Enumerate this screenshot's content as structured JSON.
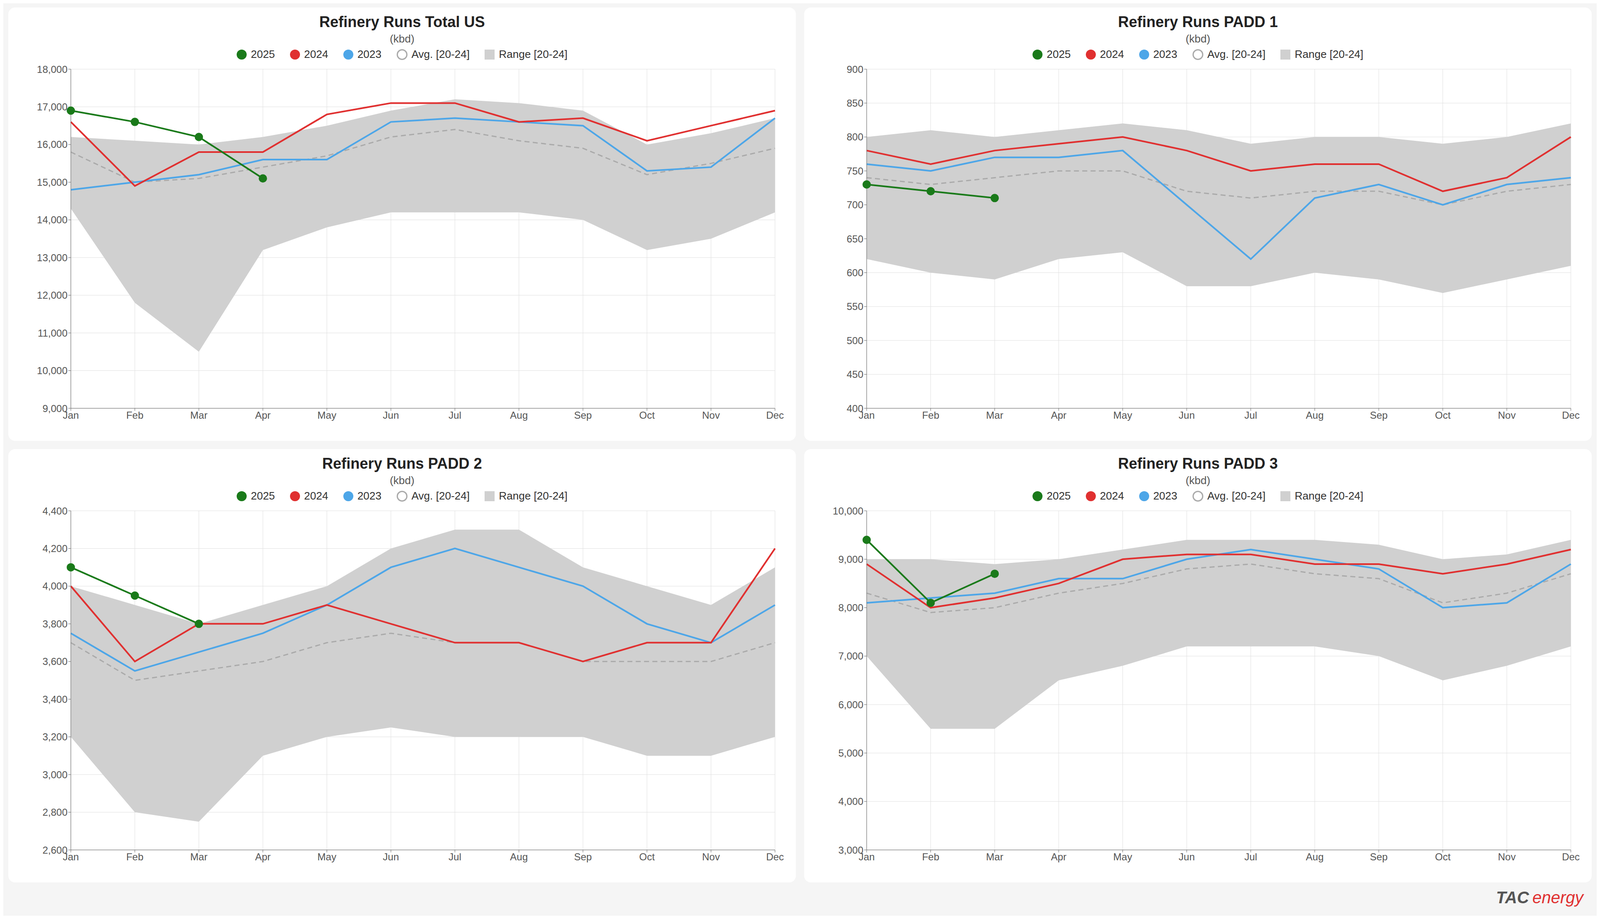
{
  "chart_data": [
    {
      "type": "line",
      "title": "Refinery Runs Total US",
      "subtitle": "(kbd)",
      "categories": [
        "Jan",
        "Feb",
        "Mar",
        "Apr",
        "May",
        "Jun",
        "Jul",
        "Aug",
        "Sep",
        "Oct",
        "Nov",
        "Dec"
      ],
      "series": [
        {
          "name": "2025",
          "color": "#1a7a1a",
          "marker": "circle",
          "values": [
            16900,
            16600,
            16200,
            15100,
            null,
            null,
            null,
            null,
            null,
            null,
            null,
            null
          ]
        },
        {
          "name": "2024",
          "color": "#e03030",
          "values": [
            16600,
            14900,
            15800,
            15800,
            16800,
            17100,
            17100,
            16600,
            16700,
            16100,
            16500,
            16900
          ]
        },
        {
          "name": "2023",
          "color": "#4da6e8",
          "values": [
            14800,
            15000,
            15200,
            15600,
            15600,
            16600,
            16700,
            16600,
            16500,
            15300,
            15400,
            16700
          ]
        },
        {
          "name": "Avg. [20-24]",
          "color": "#aaaaaa",
          "line_style": "dashed",
          "values": [
            15800,
            15000,
            15100,
            15400,
            15700,
            16200,
            16400,
            16100,
            15900,
            15200,
            15500,
            15900
          ]
        },
        {
          "name": "Range [20-24]",
          "type": "range",
          "color": "#d0d0d0",
          "low": [
            14300,
            11800,
            10500,
            13200,
            13800,
            14200,
            14200,
            14200,
            14000,
            13200,
            13500,
            14200
          ],
          "high": [
            16200,
            16100,
            16000,
            16200,
            16500,
            16900,
            17200,
            17100,
            16900,
            16000,
            16300,
            16700
          ]
        }
      ],
      "ylim": [
        9000,
        18000
      ],
      "yticks": [
        {
          "value": 9000,
          "label": "9,000"
        },
        {
          "value": 10000,
          "label": "10,000"
        },
        {
          "value": 11000,
          "label": "11,000"
        },
        {
          "value": 12000,
          "label": "12,000"
        },
        {
          "value": 13000,
          "label": "13,000"
        },
        {
          "value": 14000,
          "label": "14,000"
        },
        {
          "value": 15000,
          "label": "15,000"
        },
        {
          "value": 16000,
          "label": "16,000"
        },
        {
          "value": 17000,
          "label": "17,000"
        },
        {
          "value": 18000,
          "label": "18,000"
        }
      ],
      "grid": true,
      "legend": "top"
    },
    {
      "type": "line",
      "title": "Refinery Runs PADD 1",
      "subtitle": "(kbd)",
      "categories": [
        "Jan",
        "Feb",
        "Mar",
        "Apr",
        "May",
        "Jun",
        "Jul",
        "Aug",
        "Sep",
        "Oct",
        "Nov",
        "Dec"
      ],
      "series": [
        {
          "name": "2025",
          "color": "#1a7a1a",
          "marker": "circle",
          "values": [
            730,
            720,
            710,
            null,
            null,
            null,
            null,
            null,
            null,
            null,
            null,
            null
          ]
        },
        {
          "name": "2024",
          "color": "#e03030",
          "values": [
            780,
            760,
            780,
            790,
            800,
            780,
            750,
            760,
            760,
            720,
            740,
            800
          ]
        },
        {
          "name": "2023",
          "color": "#4da6e8",
          "values": [
            760,
            750,
            770,
            770,
            780,
            700,
            620,
            710,
            730,
            700,
            730,
            740
          ]
        },
        {
          "name": "Avg. [20-24]",
          "color": "#aaaaaa",
          "line_style": "dashed",
          "values": [
            740,
            730,
            740,
            750,
            750,
            720,
            710,
            720,
            720,
            700,
            720,
            730
          ]
        },
        {
          "name": "Range [20-24]",
          "type": "range",
          "color": "#d0d0d0",
          "low": [
            620,
            600,
            590,
            620,
            630,
            580,
            580,
            600,
            590,
            570,
            590,
            610
          ],
          "high": [
            800,
            810,
            800,
            810,
            820,
            810,
            790,
            800,
            800,
            790,
            800,
            820
          ]
        }
      ],
      "ylim": [
        400,
        900
      ],
      "yticks": [
        400,
        450,
        500,
        550,
        600,
        650,
        700,
        750,
        800,
        850,
        900
      ],
      "grid": true,
      "legend": "top"
    },
    {
      "type": "line",
      "title": "Refinery Runs PADD 2",
      "subtitle": "(kbd)",
      "categories": [
        "Jan",
        "Feb",
        "Mar",
        "Apr",
        "May",
        "Jun",
        "Jul",
        "Aug",
        "Sep",
        "Oct",
        "Nov",
        "Dec"
      ],
      "series": [
        {
          "name": "2025",
          "color": "#1a7a1a",
          "marker": "circle",
          "values": [
            4100,
            3950,
            3800,
            null,
            null,
            null,
            null,
            null,
            null,
            null,
            null,
            null
          ]
        },
        {
          "name": "2024",
          "color": "#e03030",
          "values": [
            4000,
            3600,
            3800,
            3800,
            3900,
            3800,
            3700,
            3700,
            3600,
            3700,
            3700,
            4200
          ]
        },
        {
          "name": "2023",
          "color": "#4da6e8",
          "values": [
            3750,
            3550,
            3650,
            3750,
            3900,
            4100,
            4200,
            4100,
            4000,
            3800,
            3700,
            3900
          ]
        },
        {
          "name": "Avg. [20-24]",
          "color": "#aaaaaa",
          "line_style": "dashed",
          "values": [
            3700,
            3500,
            3550,
            3600,
            3700,
            3750,
            3700,
            3700,
            3600,
            3600,
            3600,
            3700
          ]
        },
        {
          "name": "Range [20-24]",
          "type": "range",
          "color": "#d0d0d0",
          "low": [
            3200,
            2800,
            2750,
            3100,
            3200,
            3250,
            3200,
            3200,
            3200,
            3100,
            3100,
            3200
          ],
          "high": [
            4000,
            3900,
            3800,
            3900,
            4000,
            4200,
            4300,
            4300,
            4100,
            4000,
            3900,
            4100
          ]
        }
      ],
      "ylim": [
        2600,
        4400
      ],
      "yticks": [
        {
          "value": 2600,
          "label": "2,600"
        },
        {
          "value": 2800,
          "label": "2,800"
        },
        {
          "value": 3000,
          "label": "3,000"
        },
        {
          "value": 3200,
          "label": "3,200"
        },
        {
          "value": 3400,
          "label": "3,400"
        },
        {
          "value": 3600,
          "label": "3,600"
        },
        {
          "value": 3800,
          "label": "3,800"
        },
        {
          "value": 4000,
          "label": "4,000"
        },
        {
          "value": 4200,
          "label": "4,200"
        },
        {
          "value": 4400,
          "label": "4,400"
        }
      ],
      "grid": true,
      "legend": "top"
    },
    {
      "type": "line",
      "title": "Refinery Runs PADD 3",
      "subtitle": "(kbd)",
      "categories": [
        "Jan",
        "Feb",
        "Mar",
        "Apr",
        "May",
        "Jun",
        "Jul",
        "Aug",
        "Sep",
        "Oct",
        "Nov",
        "Dec"
      ],
      "series": [
        {
          "name": "2025",
          "color": "#1a7a1a",
          "marker": "circle",
          "values": [
            9400,
            8100,
            8700,
            null,
            null,
            null,
            null,
            null,
            null,
            null,
            null,
            null
          ]
        },
        {
          "name": "2024",
          "color": "#e03030",
          "values": [
            8900,
            8000,
            8200,
            8500,
            9000,
            9100,
            9100,
            8900,
            8900,
            8700,
            8900,
            9200
          ]
        },
        {
          "name": "2023",
          "color": "#4da6e8",
          "values": [
            8100,
            8200,
            8300,
            8600,
            8600,
            9000,
            9200,
            9000,
            8800,
            8000,
            8100,
            8900
          ]
        },
        {
          "name": "Avg. [20-24]",
          "color": "#aaaaaa",
          "line_style": "dashed",
          "values": [
            8300,
            7900,
            8000,
            8300,
            8500,
            8800,
            8900,
            8700,
            8600,
            8100,
            8300,
            8700
          ]
        },
        {
          "name": "Range [20-24]",
          "type": "range",
          "color": "#d0d0d0",
          "low": [
            7000,
            5500,
            5500,
            6500,
            6800,
            7200,
            7200,
            7200,
            7000,
            6500,
            6800,
            7200
          ],
          "high": [
            9000,
            9000,
            8900,
            9000,
            9200,
            9400,
            9400,
            9400,
            9300,
            9000,
            9100,
            9400
          ]
        }
      ],
      "ylim": [
        3000,
        10000
      ],
      "yticks": [
        {
          "value": 3000,
          "label": "3,000"
        },
        {
          "value": 4000,
          "label": "4,000"
        },
        {
          "value": 5000,
          "label": "5,000"
        },
        {
          "value": 6000,
          "label": "6,000"
        },
        {
          "value": 7000,
          "label": "7,000"
        },
        {
          "value": 8000,
          "label": "8,000"
        },
        {
          "value": 9000,
          "label": "9,000"
        },
        {
          "value": 10000,
          "label": "10,000"
        }
      ],
      "grid": true,
      "legend": "top",
      "annotations": [
        "TAC",
        "energy"
      ]
    }
  ]
}
